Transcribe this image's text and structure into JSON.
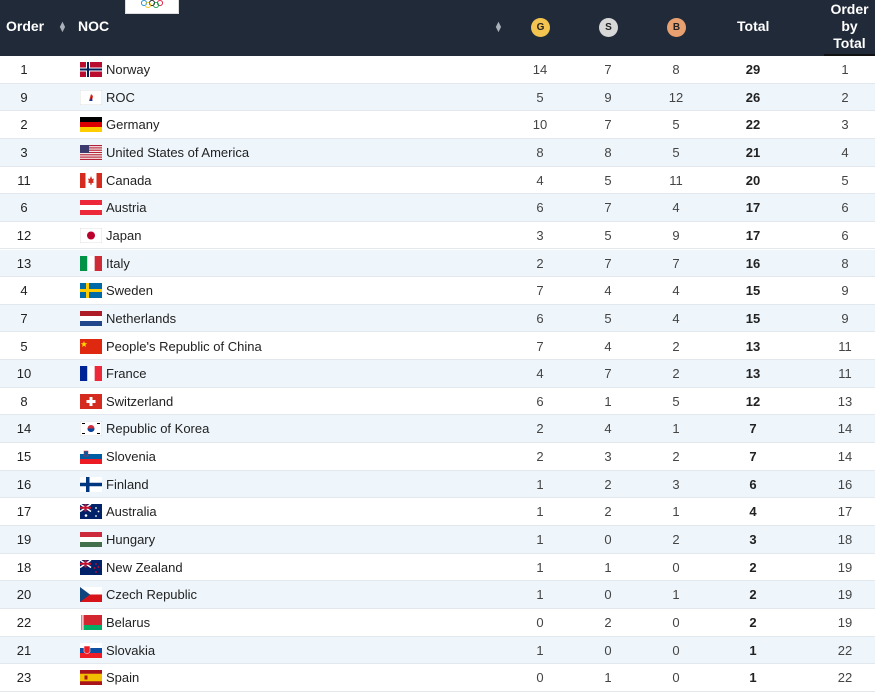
{
  "header": {
    "order": "Order",
    "noc": "NOC",
    "gold": "G",
    "silver": "S",
    "bronze": "B",
    "total": "Total",
    "order_by_total_line1": "Order",
    "order_by_total_line2": "by",
    "order_by_total_line3": "Total"
  },
  "colors": {
    "header_bg": "#212a38",
    "gold": "#f3c44f",
    "silver": "#d8d8d8",
    "bronze": "#e8a070",
    "row_alt": "#eef6fc"
  },
  "rows": [
    {
      "order": "1",
      "noc": "Norway",
      "flag": "norway-flag-icon",
      "g": "14",
      "s": "7",
      "b": "8",
      "total": "29",
      "order_by_total": "1"
    },
    {
      "order": "9",
      "noc": "ROC",
      "flag": "roc-flag-icon",
      "g": "5",
      "s": "9",
      "b": "12",
      "total": "26",
      "order_by_total": "2"
    },
    {
      "order": "2",
      "noc": "Germany",
      "flag": "germany-flag-icon",
      "g": "10",
      "s": "7",
      "b": "5",
      "total": "22",
      "order_by_total": "3"
    },
    {
      "order": "3",
      "noc": "United States of America",
      "flag": "usa-flag-icon",
      "g": "8",
      "s": "8",
      "b": "5",
      "total": "21",
      "order_by_total": "4"
    },
    {
      "order": "11",
      "noc": "Canada",
      "flag": "canada-flag-icon",
      "g": "4",
      "s": "5",
      "b": "11",
      "total": "20",
      "order_by_total": "5"
    },
    {
      "order": "6",
      "noc": "Austria",
      "flag": "austria-flag-icon",
      "g": "6",
      "s": "7",
      "b": "4",
      "total": "17",
      "order_by_total": "6"
    },
    {
      "order": "12",
      "noc": "Japan",
      "flag": "japan-flag-icon",
      "g": "3",
      "s": "5",
      "b": "9",
      "total": "17",
      "order_by_total": "6"
    },
    {
      "order": "13",
      "noc": "Italy",
      "flag": "italy-flag-icon",
      "g": "2",
      "s": "7",
      "b": "7",
      "total": "16",
      "order_by_total": "8"
    },
    {
      "order": "4",
      "noc": "Sweden",
      "flag": "sweden-flag-icon",
      "g": "7",
      "s": "4",
      "b": "4",
      "total": "15",
      "order_by_total": "9"
    },
    {
      "order": "7",
      "noc": "Netherlands",
      "flag": "netherlands-flag-icon",
      "g": "6",
      "s": "5",
      "b": "4",
      "total": "15",
      "order_by_total": "9"
    },
    {
      "order": "5",
      "noc": "People's Republic of China",
      "flag": "china-flag-icon",
      "g": "7",
      "s": "4",
      "b": "2",
      "total": "13",
      "order_by_total": "11"
    },
    {
      "order": "10",
      "noc": "France",
      "flag": "france-flag-icon",
      "g": "4",
      "s": "7",
      "b": "2",
      "total": "13",
      "order_by_total": "11"
    },
    {
      "order": "8",
      "noc": "Switzerland",
      "flag": "switzerland-flag-icon",
      "g": "6",
      "s": "1",
      "b": "5",
      "total": "12",
      "order_by_total": "13"
    },
    {
      "order": "14",
      "noc": "Republic of Korea",
      "flag": "korea-flag-icon",
      "g": "2",
      "s": "4",
      "b": "1",
      "total": "7",
      "order_by_total": "14"
    },
    {
      "order": "15",
      "noc": "Slovenia",
      "flag": "slovenia-flag-icon",
      "g": "2",
      "s": "3",
      "b": "2",
      "total": "7",
      "order_by_total": "14"
    },
    {
      "order": "16",
      "noc": "Finland",
      "flag": "finland-flag-icon",
      "g": "1",
      "s": "2",
      "b": "3",
      "total": "6",
      "order_by_total": "16"
    },
    {
      "order": "17",
      "noc": "Australia",
      "flag": "australia-flag-icon",
      "g": "1",
      "s": "2",
      "b": "1",
      "total": "4",
      "order_by_total": "17"
    },
    {
      "order": "19",
      "noc": "Hungary",
      "flag": "hungary-flag-icon",
      "g": "1",
      "s": "0",
      "b": "2",
      "total": "3",
      "order_by_total": "18"
    },
    {
      "order": "18",
      "noc": "New Zealand",
      "flag": "new-zealand-flag-icon",
      "g": "1",
      "s": "1",
      "b": "0",
      "total": "2",
      "order_by_total": "19"
    },
    {
      "order": "20",
      "noc": "Czech Republic",
      "flag": "czech-flag-icon",
      "g": "1",
      "s": "0",
      "b": "1",
      "total": "2",
      "order_by_total": "19"
    },
    {
      "order": "22",
      "noc": "Belarus",
      "flag": "belarus-flag-icon",
      "g": "0",
      "s": "2",
      "b": "0",
      "total": "2",
      "order_by_total": "19"
    },
    {
      "order": "21",
      "noc": "Slovakia",
      "flag": "slovakia-flag-icon",
      "g": "1",
      "s": "0",
      "b": "0",
      "total": "1",
      "order_by_total": "22"
    },
    {
      "order": "23",
      "noc": "Spain",
      "flag": "spain-flag-icon",
      "g": "0",
      "s": "1",
      "b": "0",
      "total": "1",
      "order_by_total": "22"
    }
  ]
}
